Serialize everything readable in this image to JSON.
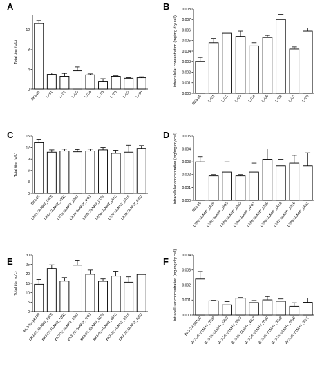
{
  "chart_data": [
    {
      "type": "bar",
      "panel": "A",
      "ylabel": "Total titer (g/L)",
      "ylim": [
        0,
        15
      ],
      "yticks": [
        "0",
        "4",
        "8",
        "12"
      ],
      "yticks_values": [
        0,
        4,
        8,
        12
      ],
      "categories": [
        "BK3-25",
        "LX01",
        "LX02",
        "LX03",
        "LX04",
        "LX05",
        "LX06",
        "LX07",
        "LX08"
      ],
      "values": [
        13.3,
        3.0,
        2.6,
        3.7,
        2.9,
        1.6,
        2.6,
        2.2,
        2.3
      ],
      "errors": [
        0.6,
        0.3,
        0.6,
        0.8,
        0.2,
        0.5,
        0.1,
        0.1,
        0.2
      ],
      "first_bar_fill": "#ffffff"
    },
    {
      "type": "bar",
      "panel": "B",
      "ylabel": "intracellular concentration (mg/mg dry cell)",
      "ylim": [
        0,
        0.008
      ],
      "yticks": [
        "0.000",
        "0.001",
        "0.002",
        "0.003",
        "0.004",
        "0.005",
        "0.006",
        "0.007",
        "0.008"
      ],
      "yticks_values": [
        0,
        0.001,
        0.002,
        0.003,
        0.004,
        0.005,
        0.006,
        0.007,
        0.008
      ],
      "categories": [
        "BK3-25",
        "LX01",
        "LX02",
        "LX03",
        "LX04",
        "LX05",
        "LX06",
        "LX07",
        "LX08"
      ],
      "values": [
        0.003,
        0.0048,
        0.0057,
        0.0054,
        0.0045,
        0.0053,
        0.007,
        0.0042,
        0.0059
      ],
      "errors": [
        0.0004,
        0.0004,
        0.0001,
        0.0005,
        0.0003,
        0.0002,
        0.0005,
        0.0002,
        0.0003
      ]
    },
    {
      "type": "bar",
      "panel": "C",
      "ylabel": "Total titer (g/L)",
      "ylim": [
        0,
        15
      ],
      "yticks": [
        "0",
        "3",
        "6",
        "9",
        "12",
        "15"
      ],
      "yticks_values": [
        0,
        3,
        6,
        9,
        12,
        15
      ],
      "categories": [
        "BK3-25",
        "LX01::SLNHY_0929",
        "LX02::SLNHY_1893",
        "LX03::SLNHY_3363",
        "LX04::SLNHY_4037",
        "LX05::SLNHY_0199",
        "LX06::SLNHY_0818",
        "LX07::SLNHY_6316",
        "LX08::SLNHY_6652"
      ],
      "values": [
        13.3,
        10.8,
        11.1,
        10.9,
        11.1,
        11.4,
        10.5,
        10.8,
        11.8
      ],
      "errors": [
        0.9,
        0.6,
        0.5,
        0.6,
        0.5,
        0.6,
        0.8,
        1.8,
        0.7
      ]
    },
    {
      "type": "bar",
      "panel": "D",
      "ylabel": "intracellular concentration (mg/mg dry cell)",
      "ylim": [
        0,
        0.005
      ],
      "yticks": [
        "0.000",
        "0.001",
        "0.002",
        "0.003",
        "0.004",
        "0.005"
      ],
      "yticks_values": [
        0,
        0.001,
        0.002,
        0.003,
        0.004,
        0.005
      ],
      "categories": [
        "BK3-25",
        "LX01::SLNHY_0929",
        "LX02::SLNHY_1893",
        "LX03::SLNHY_3363",
        "LX04::SLNHY_4037",
        "LX05::SLNHY_0199",
        "LX06::SLNHY_0818",
        "LX07::SLNHY_6316",
        "LX08::SLNHY_6652"
      ],
      "values": [
        0.003,
        0.0019,
        0.0022,
        0.0019,
        0.0022,
        0.0032,
        0.0027,
        0.0029,
        0.0027
      ],
      "errors": [
        0.0004,
        0.0001,
        0.0008,
        0.0001,
        0.0007,
        0.0008,
        0.0005,
        0.0006,
        0.001
      ]
    },
    {
      "type": "bar",
      "panel": "E",
      "ylabel": "Total titer (g/L)",
      "ylim": [
        0,
        30
      ],
      "yticks": [
        "0",
        "5",
        "10",
        "15",
        "20",
        "25",
        "30"
      ],
      "yticks_values": [
        0,
        5,
        10,
        15,
        20,
        25,
        30
      ],
      "categories": [
        "BK3-25::pB139",
        "BK3-25::SLNHY_0929",
        "BK3-25::SLNHY_1893",
        "BK3-25::SLNHY_3363",
        "BK3-25::SLNHY_4037",
        "BK3-25::SLNHY_0199",
        "BK3-25::SLNHY_0818",
        "BK3-25::SLNHY_6316",
        "BK3-25::SLNHY_6652"
      ],
      "values": [
        14.5,
        22.8,
        16.2,
        24.6,
        19.8,
        16.1,
        18.8,
        15.6,
        19.7
      ],
      "errors": [
        2.5,
        2.0,
        1.8,
        2.3,
        2.2,
        1.2,
        2.6,
        2.8,
        0.0
      ]
    },
    {
      "type": "bar",
      "panel": "F",
      "ylabel": "intracellular concentration (mg/mg dry cell)",
      "ylim": [
        0,
        0.004
      ],
      "yticks": [
        "0.000",
        "0.001",
        "0.002",
        "0.003",
        "0.004"
      ],
      "yticks_values": [
        0,
        0.001,
        0.002,
        0.003,
        0.004
      ],
      "categories": [
        "BK3-25::pB139",
        "BK3-25::SLNHY_0929",
        "BK3-25::SLNHY_1893",
        "BK3-25::SLNHY_3363",
        "BK3-25::SLNHY_4037",
        "BK3-25::SLNHY_0199",
        "BK3-25::SLNHY_0818",
        "BK3-25::SLNHY_6316",
        "BK3-25::SLNHY_6652"
      ],
      "values": [
        0.0024,
        0.00095,
        0.00068,
        0.00112,
        0.00083,
        0.00101,
        0.00092,
        0.00058,
        0.00085
      ],
      "errors": [
        0.0005,
        3e-05,
        0.00022,
        4e-05,
        0.00014,
        0.00022,
        0.00015,
        0.00024,
        0.00028
      ]
    }
  ]
}
